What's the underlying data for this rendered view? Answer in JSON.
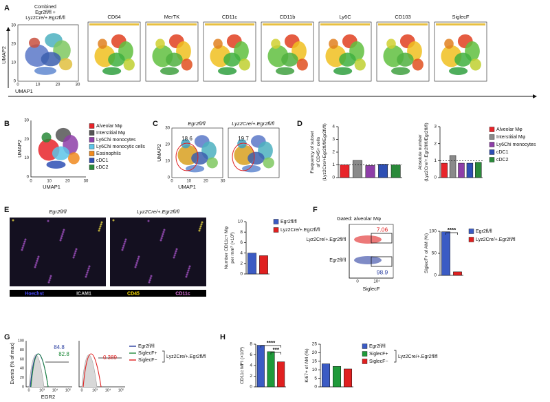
{
  "panels": {
    "A": {
      "label": "A",
      "combined_title": [
        "Combined",
        "Egr2fl/fl +",
        "Lyz2Cre/+.Egr2fl/fl"
      ],
      "markers": [
        "CD64",
        "MerTK",
        "CD11c",
        "CD11b",
        "Ly6C",
        "CD103",
        "SiglecF"
      ],
      "x_label": "UMAP1",
      "y_label": "UMAP2",
      "xticks": [
        0,
        10,
        20,
        30
      ],
      "yticks": [
        0,
        10,
        20,
        30
      ]
    },
    "B": {
      "label": "B",
      "x_label": "UMAP1",
      "y_label": "UMAP2",
      "xticks": [
        0,
        10,
        20,
        30
      ],
      "yticks": [
        0,
        10,
        20,
        30
      ],
      "legend": [
        {
          "name": "Alveolar Mφ",
          "color": "#e8242a"
        },
        {
          "name": "Interstitial Mφ",
          "color": "#555555"
        },
        {
          "name": "Ly6Chi monocytes",
          "color": "#8e3ea8"
        },
        {
          "name": "Ly6Chi monocytic cells",
          "color": "#5cc4e8"
        },
        {
          "name": "Eosinophils",
          "color": "#f08a1e"
        },
        {
          "name": "cDC1",
          "color": "#2e4fb4"
        },
        {
          "name": "cDC2",
          "color": "#2a8a3a"
        }
      ]
    },
    "C": {
      "label": "C",
      "x_label": "UMAP1",
      "y_label": "UMAP2",
      "xticks": [
        0,
        10,
        20,
        30
      ],
      "yticks": [
        0,
        10,
        20,
        30
      ],
      "plots": [
        {
          "title": "Egr2fl/fl",
          "gate_value": 18.6
        },
        {
          "title": "Lyz2Cre/+.Egr2fl/fl",
          "gate_value": 19.7
        }
      ]
    },
    "D": {
      "label": "D",
      "charts": [
        {
          "ylabel": [
            "Frequency of subset",
            "of CD45+ cells",
            "(Lyz2Cre/+Egr2fl/fl/Egr2fl/fl)"
          ],
          "ylim": [
            0,
            4
          ],
          "yticks": [
            0,
            1,
            2,
            3,
            4
          ],
          "reference_line": 1,
          "bars": [
            {
              "value": 1.0,
              "color": "#e8242a"
            },
            {
              "value": 1.35,
              "color": "#8a8a8a"
            },
            {
              "value": 0.95,
              "color": "#8e3ea8"
            },
            {
              "value": 1.05,
              "color": "#2e4fb4"
            },
            {
              "value": 1.0,
              "color": "#2a8a3a"
            }
          ]
        },
        {
          "ylabel": [
            "Absolute number",
            "(Lyz2Cre/+.Egr2fl/fl/Egr2fl/fl)"
          ],
          "ylim": [
            0,
            3
          ],
          "yticks": [
            0,
            1,
            2,
            3
          ],
          "reference_line": 1,
          "bars": [
            {
              "value": 0.85,
              "color": "#e8242a"
            },
            {
              "value": 1.3,
              "color": "#8a8a8a"
            },
            {
              "value": 0.85,
              "color": "#8e3ea8"
            },
            {
              "value": 0.85,
              "color": "#2e4fb4"
            },
            {
              "value": 0.9,
              "color": "#2a8a3a"
            }
          ]
        }
      ],
      "legend": [
        {
          "name": "Alveolar Mφ",
          "color": "#e8242a"
        },
        {
          "name": "Interstitial Mφ",
          "color": "#8a8a8a"
        },
        {
          "name": "Ly6Chi monocytes",
          "color": "#8e3ea8"
        },
        {
          "name": "cDC1",
          "color": "#2e4fb4"
        },
        {
          "name": "cDC2",
          "color": "#2a8a3a"
        }
      ]
    },
    "E": {
      "label": "E",
      "images": [
        "Egr2fl/fl",
        "Lyz2Cre/+.Egr2fl/fl"
      ],
      "channels": [
        {
          "name": "Hoechst",
          "color": "#4a4aff"
        },
        {
          "name": "ICAM1",
          "color": "#cccccc"
        },
        {
          "name": "CD45",
          "color": "#ffe000"
        },
        {
          "name": "CD11c",
          "color": "#e070e0"
        }
      ],
      "chart": {
        "ylabel": [
          "Number CD11c+ Mφ",
          "per mm² (×10³)"
        ],
        "ylim": [
          0,
          10
        ],
        "yticks": [
          0,
          2,
          4,
          6,
          8,
          10
        ],
        "bars": [
          {
            "value": 4.0,
            "color": "#3b5bc4"
          },
          {
            "value": 3.5,
            "color": "#e02020"
          }
        ]
      },
      "legend": [
        {
          "name": "Egr2fl/fl",
          "color": "#3b5bc4"
        },
        {
          "name": "Lyz2Cre/+.Egr2fl/fl",
          "color": "#e02020"
        }
      ]
    },
    "F": {
      "label": "F",
      "gate_label": "Gated: alveolar Mφ",
      "rows": [
        {
          "name": "Lyz2Cre/+.Egr2fl/fl",
          "value": 7.06,
          "color": "#e02020"
        },
        {
          "name": "Egr2fl/fl",
          "value": 98.9,
          "color": "#2a3ea0"
        }
      ],
      "x_label": "SiglecF",
      "xticks": [
        0,
        {
          "value": 10000,
          "label": "10⁴"
        }
      ],
      "chart": {
        "ylabel": [
          "SiglecF+ of AM (%)"
        ],
        "ylim": [
          0,
          100
        ],
        "yticks": [
          0,
          50,
          100
        ],
        "significance": [
          "****"
        ],
        "bars": [
          {
            "value": 99,
            "color": "#3b5bc4"
          },
          {
            "value": 8,
            "color": "#e02020"
          }
        ]
      },
      "legend": [
        {
          "name": "Egr2fl/fl",
          "color": "#3b5bc4"
        },
        {
          "name": "Lyz2Cre/+.Egr2fl/fl",
          "color": "#e02020"
        }
      ]
    },
    "G": {
      "label": "G",
      "y_label": "Events (% of max)",
      "x_label": "EGR2",
      "yticks": [
        0,
        20,
        40,
        60,
        80,
        100
      ],
      "xticks": [
        0,
        {
          "value": 1000,
          "label": "10³"
        },
        {
          "value": 10000,
          "label": "10⁴"
        },
        {
          "value": 100000,
          "label": "10⁵"
        }
      ],
      "gates": [
        {
          "value": 84.8,
          "color": "#2a3ea0"
        },
        {
          "value": 82.8,
          "color": "#1f8a3a"
        },
        {
          "value": 0.389,
          "color": "#e02020"
        }
      ],
      "legend": [
        {
          "name": "Egr2fl/fl",
          "color": "#2a3ea0"
        },
        {
          "name": "SiglecF+",
          "color": "#1f8a3a"
        },
        {
          "name": "SiglecF−",
          "color": "#e02020"
        }
      ],
      "bracket_label": "Lyz2Cre/+.Egr2fl/fl"
    },
    "H": {
      "label": "H",
      "charts": [
        {
          "ylabel": [
            "CD11c MFI (×10³)"
          ],
          "ylim": [
            0,
            8
          ],
          "yticks": [
            0,
            2,
            4,
            6,
            8
          ],
          "significance": [
            "****",
            "***"
          ],
          "bars": [
            {
              "value": 7.8,
              "color": "#3b5bc4"
            },
            {
              "value": 6.6,
              "color": "#1f9a3a"
            },
            {
              "value": 4.7,
              "color": "#e02020"
            }
          ]
        },
        {
          "ylabel": [
            "Ki67+ of AM (%)"
          ],
          "ylim": [
            0,
            25
          ],
          "yticks": [
            0,
            5,
            10,
            15,
            20,
            25
          ],
          "bars": [
            {
              "value": 13.5,
              "color": "#3b5bc4"
            },
            {
              "value": 12.0,
              "color": "#1f9a3a"
            },
            {
              "value": 10.5,
              "color": "#e02020"
            }
          ]
        }
      ],
      "legend": [
        {
          "name": "Egr2fl/fl",
          "color": "#3b5bc4"
        },
        {
          "name": "SiglecF+",
          "color": "#1f9a3a"
        },
        {
          "name": "SiglecF−",
          "color": "#e02020"
        }
      ],
      "bracket_label": "Lyz2Cre/+.Egr2fl/fl"
    }
  }
}
